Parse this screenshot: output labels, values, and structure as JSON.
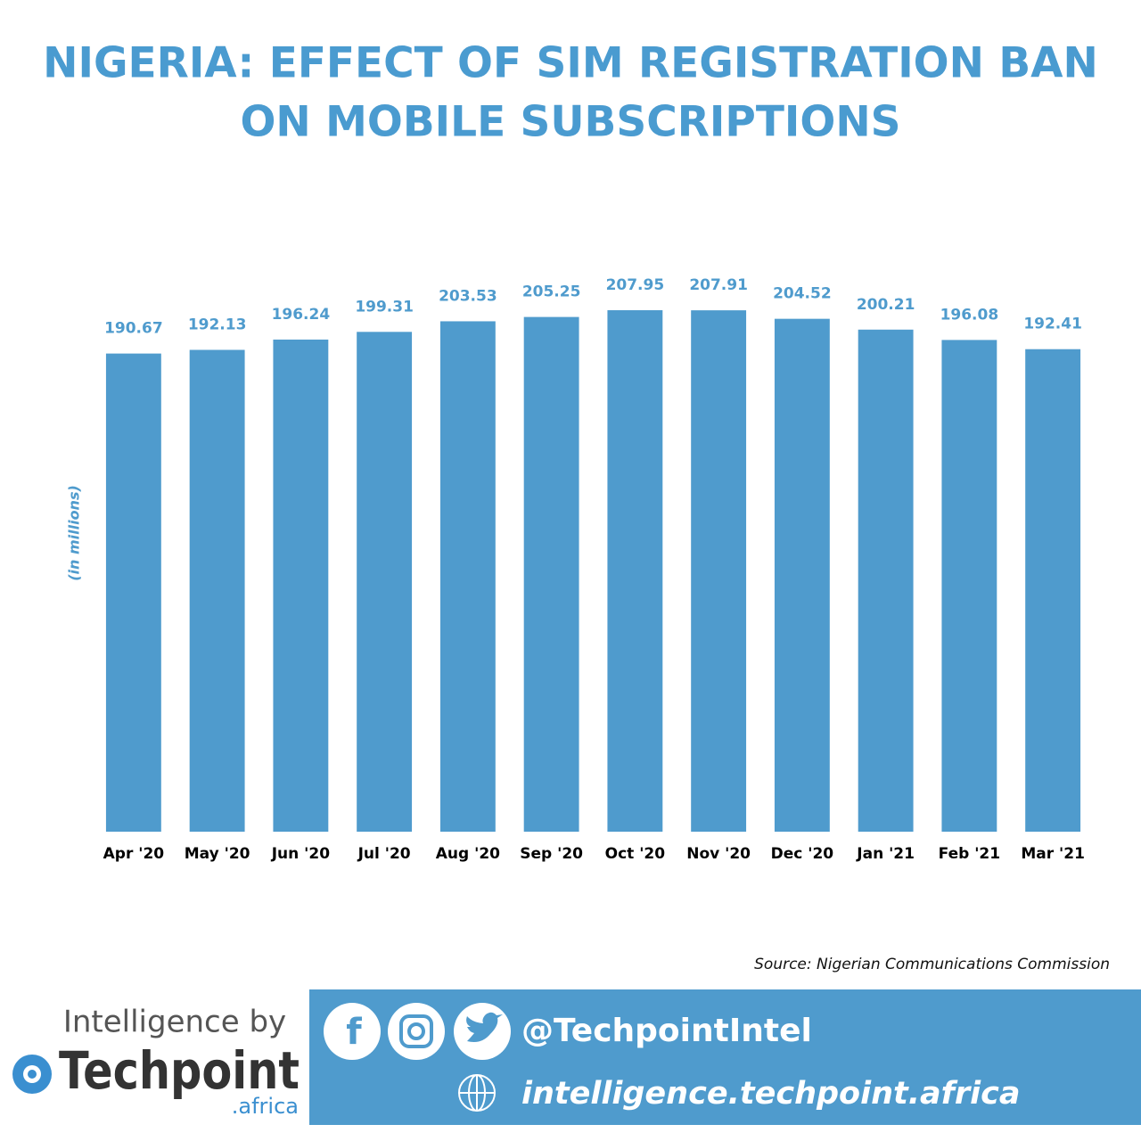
{
  "chart_data": {
    "type": "bar",
    "title": [
      "NIGERIA: EFFECT OF SIM REGISTRATION BAN",
      "ON MOBILE SUBSCRIPTIONS"
    ],
    "y_label": "(in millions)",
    "categories": [
      "Apr '20",
      "May '20",
      "Jun '20",
      "Jul '20",
      "Aug '20",
      "Sep '20",
      "Oct '20",
      "Nov '20",
      "Dec '20",
      "Jan '21",
      "Feb '21",
      "Mar '21"
    ],
    "values": [
      190.67,
      192.13,
      196.24,
      199.31,
      203.53,
      205.25,
      207.95,
      207.91,
      204.52,
      200.21,
      196.08,
      192.41
    ],
    "color": "#4f9bcd",
    "grid": false,
    "source": "Source: Nigerian Communications Commission"
  },
  "footer": {
    "tagline": "Intelligence by",
    "brand": "Techpoint",
    "brand_suffix": ".africa",
    "handle": "@TechpointIntel",
    "website": "intelligence.techpoint.africa"
  }
}
